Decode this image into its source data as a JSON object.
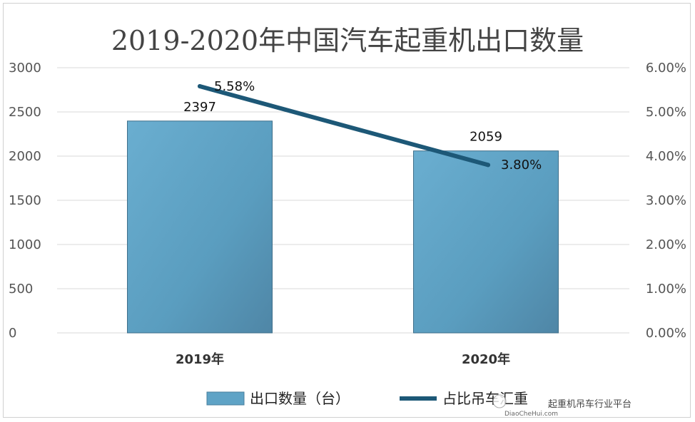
{
  "chart_data": {
    "type": "bar",
    "title": "2019-2020年中国汽车起重机出口数量",
    "categories": [
      "2019年",
      "2020年"
    ],
    "series": [
      {
        "name": "出口数量（台）",
        "type": "bar",
        "axis": "left",
        "values": [
          2397,
          2059
        ],
        "labels": [
          "2397",
          "2059"
        ],
        "color": "#5fa3c6"
      },
      {
        "name": "占比吊车汇重",
        "type": "line",
        "axis": "right",
        "values": [
          5.58,
          3.8
        ],
        "labels": [
          "5.58%",
          "3.80%"
        ],
        "color": "#1d5877"
      }
    ],
    "ylim": [
      0,
      3000
    ],
    "y_ticks": [
      "0",
      "500",
      "1000",
      "1500",
      "2000",
      "2500",
      "3000"
    ],
    "y2lim": [
      0,
      6
    ],
    "y2_ticks": [
      "0.00%",
      "1.00%",
      "2.00%",
      "3.00%",
      "4.00%",
      "5.00%",
      "6.00%"
    ],
    "grid": true,
    "legend_position": "bottom"
  },
  "watermark": {
    "text": "起重机吊车行业平台",
    "site": "DiaoCheHui.com"
  }
}
